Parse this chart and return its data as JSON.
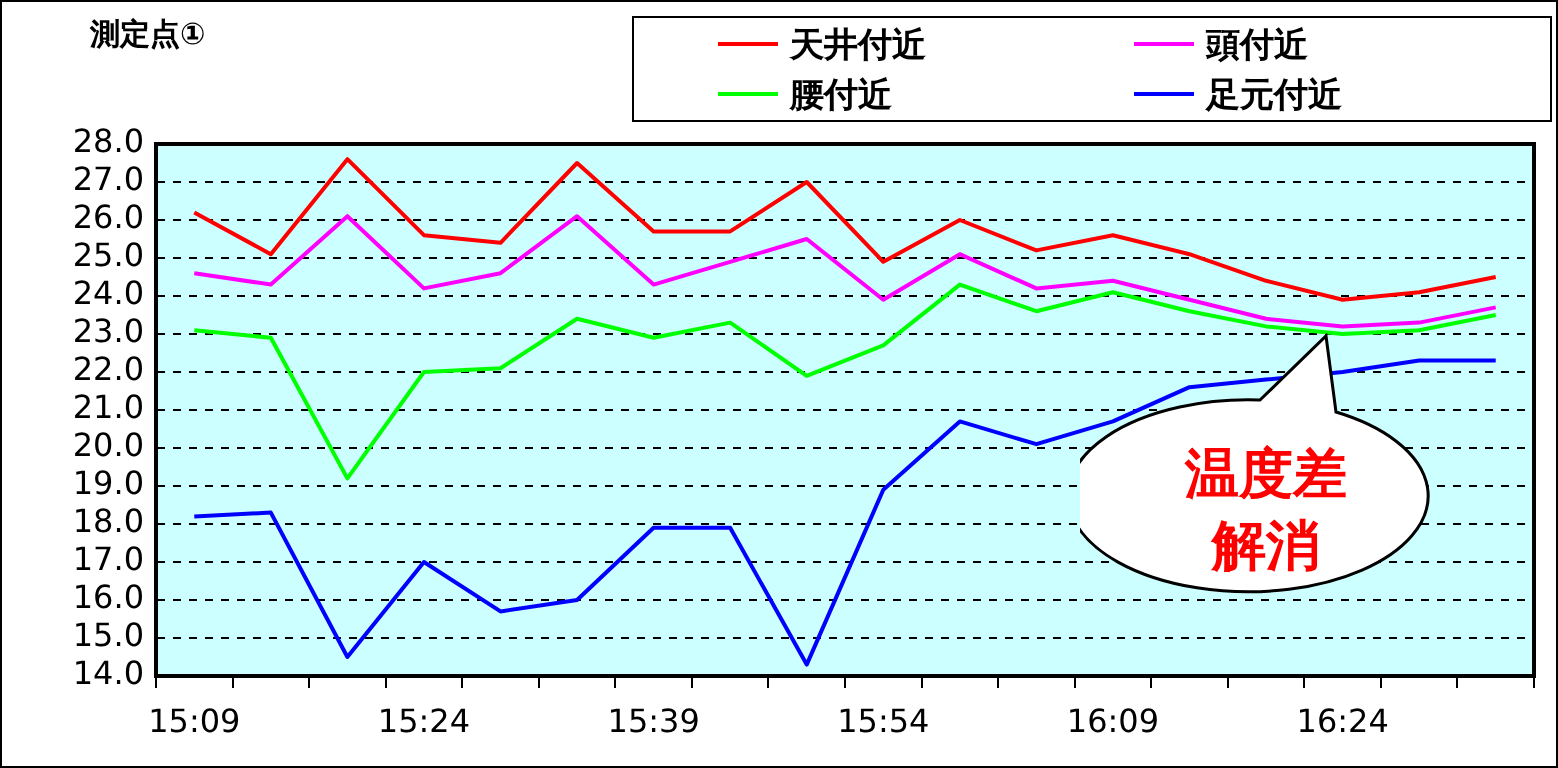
{
  "chart_data": {
    "type": "line",
    "title": "測定点①",
    "categories": [
      "15:09",
      null,
      null,
      "15:24",
      null,
      null,
      "15:39",
      null,
      null,
      "15:54",
      null,
      null,
      "16:09",
      null,
      null,
      "16:24",
      null,
      null
    ],
    "series": [
      {
        "name": "天井付近",
        "color": "#ff0000",
        "values": [
          26.2,
          25.1,
          27.6,
          25.6,
          25.4,
          27.5,
          25.7,
          25.7,
          27.0,
          24.9,
          26.0,
          25.2,
          25.6,
          25.1,
          24.4,
          23.9,
          24.1,
          24.5
        ]
      },
      {
        "name": "頭付近",
        "color": "#ff00ff",
        "values": [
          24.6,
          24.3,
          26.1,
          24.2,
          24.6,
          26.1,
          24.3,
          24.9,
          25.5,
          23.9,
          25.1,
          24.2,
          24.4,
          23.9,
          23.4,
          23.2,
          23.3,
          23.7
        ]
      },
      {
        "name": "腰付近",
        "color": "#00ff00",
        "values": [
          23.1,
          22.9,
          19.2,
          22.0,
          22.1,
          23.4,
          22.9,
          23.3,
          21.9,
          22.7,
          24.3,
          23.6,
          24.1,
          23.6,
          23.2,
          23.0,
          23.1,
          23.5
        ]
      },
      {
        "name": "足元付近",
        "color": "#0000ff",
        "values": [
          18.2,
          18.3,
          14.5,
          17.0,
          15.7,
          16.0,
          17.9,
          17.9,
          14.3,
          18.9,
          20.7,
          20.1,
          20.7,
          21.6,
          21.8,
          22.0,
          22.3,
          22.3
        ]
      }
    ],
    "ylim": [
      14,
      28
    ],
    "yticks": [
      {
        "value": 14,
        "label": "14.0"
      },
      {
        "value": 15,
        "label": "15.0"
      },
      {
        "value": 16,
        "label": "16.0"
      },
      {
        "value": 17,
        "label": "17.0"
      },
      {
        "value": 18,
        "label": "18.0"
      },
      {
        "value": 19,
        "label": "19.0"
      },
      {
        "value": 20,
        "label": "20.0"
      },
      {
        "value": 21,
        "label": "21.0"
      },
      {
        "value": 22,
        "label": "22.0"
      },
      {
        "value": 23,
        "label": "23.0"
      },
      {
        "value": 24,
        "label": "24.0"
      },
      {
        "value": 25,
        "label": "25.0"
      },
      {
        "value": 26,
        "label": "26.0"
      },
      {
        "value": 27,
        "label": "27.0"
      },
      {
        "value": 28,
        "label": "28.0"
      }
    ],
    "grid": "y",
    "legend": "top right",
    "marker": "none",
    "annotations": [
      "温度差解消"
    ]
  }
}
